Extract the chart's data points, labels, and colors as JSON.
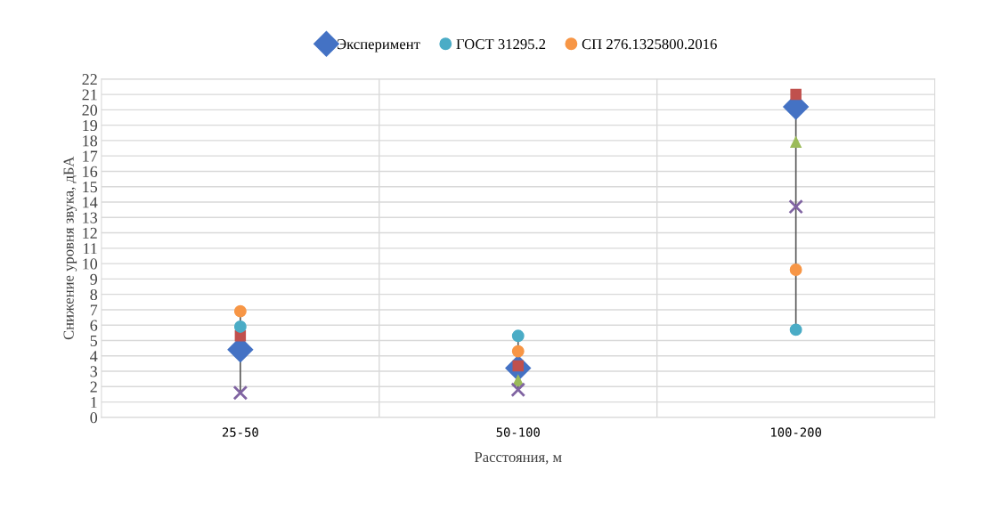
{
  "chart_data": {
    "type": "scatter",
    "xlabel": "Расстояния, м",
    "ylabel": "Снижение уровня звука, дБА",
    "categories": [
      "25-50",
      "50-100",
      "100-200"
    ],
    "ylim": [
      0,
      22
    ],
    "yticks": [
      0,
      1,
      2,
      3,
      4,
      5,
      6,
      7,
      8,
      9,
      10,
      11,
      12,
      13,
      14,
      15,
      16,
      17,
      18,
      19,
      20,
      21,
      22
    ],
    "grid": true,
    "legend": "top",
    "series": [
      {
        "name": "Эксперимент",
        "color": "#4472c4",
        "marker": "diamond",
        "values": [
          4.4,
          3.2,
          20.2
        ]
      },
      {
        "color": "#c0504d",
        "marker": "square",
        "values": [
          5.3,
          3.35,
          21.0
        ]
      },
      {
        "color": "#9bbb59",
        "marker": "triangle",
        "values": [
          null,
          2.4,
          17.9
        ]
      },
      {
        "color": "#8064a2",
        "marker": "cross",
        "values": [
          1.6,
          1.8,
          13.7
        ]
      },
      {
        "name": "ГОСТ 31295.2",
        "color": "#4bacc6",
        "marker": "circle",
        "values": [
          5.9,
          5.3,
          5.7
        ]
      },
      {
        "name": "СП 276.1325800.2016",
        "color": "#f79646",
        "marker": "circle",
        "values": [
          6.9,
          4.3,
          9.6
        ]
      }
    ]
  }
}
